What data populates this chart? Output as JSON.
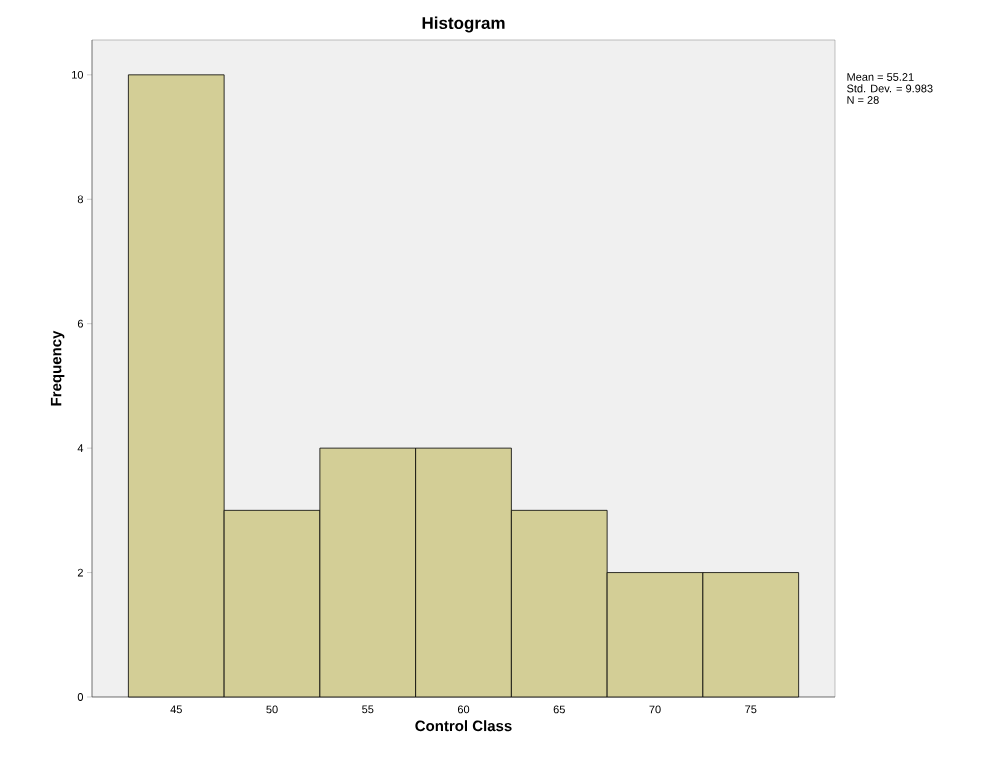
{
  "chart_data": {
    "type": "histogram",
    "title": "Histogram",
    "xlabel": "Control Class",
    "ylabel": "Frequency",
    "bins": [
      42.5,
      47.5,
      52.5,
      57.5,
      62.5,
      67.5,
      72.5,
      77.5
    ],
    "values": [
      10,
      3,
      4,
      4,
      3,
      2,
      2
    ],
    "color": "#d3ce96",
    "xlim": [
      40.6,
      79.4
    ],
    "ylim": [
      0,
      10.56
    ],
    "xticks": [
      45,
      50,
      55,
      60,
      65,
      70,
      75
    ],
    "yticks": [
      0,
      2,
      4,
      6,
      8,
      10
    ],
    "grid": false,
    "annotations": [
      "Mean = 55.21",
      "Std. Dev. = 9.983",
      "N = 28"
    ]
  }
}
